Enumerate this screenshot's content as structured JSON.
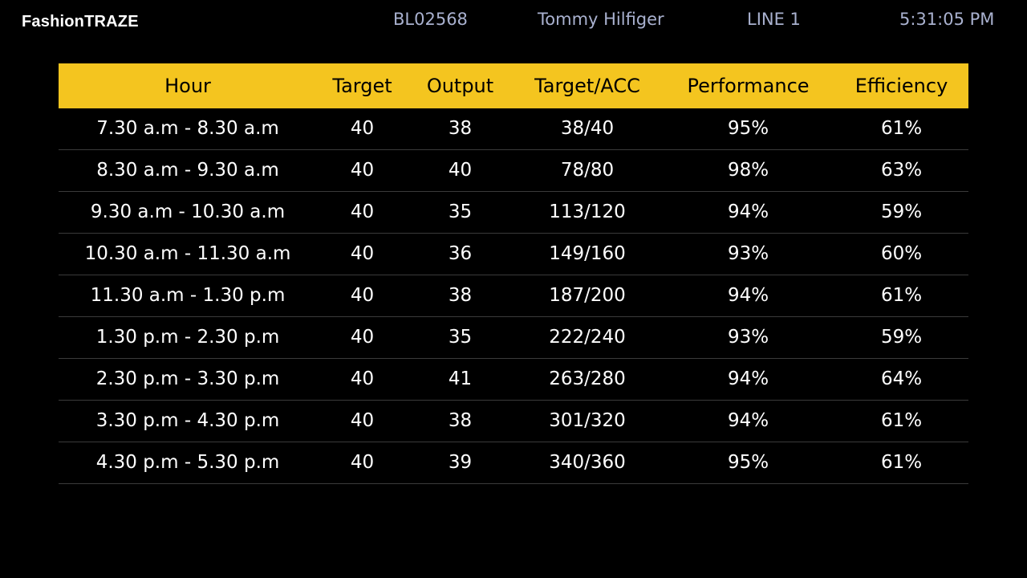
{
  "header": {
    "brand": "FashionTRAZE",
    "order_no": "BL02568",
    "buyer": "Tommy Hilfiger",
    "line": "LINE 1",
    "time": "5:31:05 PM"
  },
  "colors": {
    "header_bg": "#f4c51f",
    "background": "#000000",
    "topbar_text": "#a9b1cf"
  },
  "table": {
    "columns": [
      "Hour",
      "Target",
      "Output",
      "Target/ACC",
      "Performance",
      "Efficiency"
    ],
    "rows": [
      [
        "7.30 a.m - 8.30 a.m",
        "40",
        "38",
        "38/40",
        "95%",
        "61%"
      ],
      [
        "8.30 a.m - 9.30 a.m",
        "40",
        "40",
        "78/80",
        "98%",
        "63%"
      ],
      [
        "9.30 a.m - 10.30 a.m",
        "40",
        "35",
        "113/120",
        "94%",
        "59%"
      ],
      [
        "10.30 a.m - 11.30 a.m",
        "40",
        "36",
        "149/160",
        "93%",
        "60%"
      ],
      [
        "11.30 a.m - 1.30 p.m",
        "40",
        "38",
        "187/200",
        "94%",
        "61%"
      ],
      [
        "1.30 p.m - 2.30 p.m",
        "40",
        "35",
        "222/240",
        "93%",
        "59%"
      ],
      [
        "2.30 p.m - 3.30 p.m",
        "40",
        "41",
        "263/280",
        "94%",
        "64%"
      ],
      [
        "3.30 p.m - 4.30 p.m",
        "40",
        "38",
        "301/320",
        "94%",
        "61%"
      ],
      [
        "4.30 p.m - 5.30 p.m",
        "40",
        "39",
        "340/360",
        "95%",
        "61%"
      ]
    ]
  }
}
